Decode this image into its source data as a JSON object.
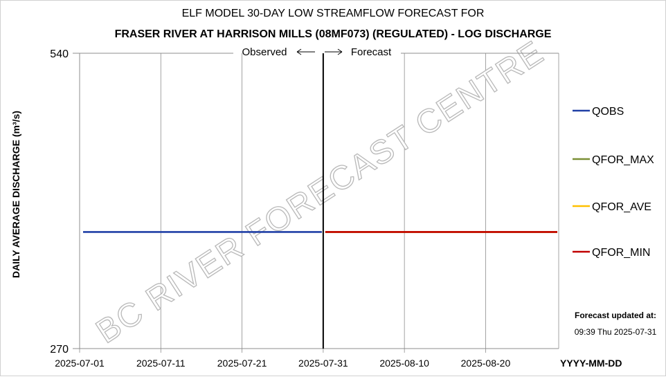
{
  "chart_data": {
    "type": "line",
    "title": "ELF MODEL 30-DAY LOW STREAMFLOW FORECAST FOR",
    "subtitle": "FRASER RIVER AT HARRISON MILLS (08MF073) (REGULATED) - LOG DISCHARGE",
    "ylabel": "DAILY AVERAGE DISCHARGE (m³/s)",
    "xlabel": "YYYY-MM-DD",
    "y_scale": "log",
    "ylim": [
      270,
      540
    ],
    "y_ticks": [
      "540",
      "270"
    ],
    "xlim": [
      "2025-07-01",
      "2025-08-29"
    ],
    "x_ticks": [
      "2025-07-01",
      "2025-07-11",
      "2025-07-21",
      "2025-07-31",
      "2025-08-10",
      "2025-08-20"
    ],
    "grid": "vertical",
    "legend_placement": "right",
    "divider": {
      "date": "2025-07-31",
      "left_label": "Observed",
      "right_label": "Forecast"
    },
    "series": [
      {
        "name": "QOBS",
        "color": "#1f3fa6",
        "x_start": "2025-07-01",
        "x_end": "2025-07-31",
        "value": 355
      },
      {
        "name": "QFOR_MAX",
        "color": "#7a8f35",
        "x_start": "2025-07-31",
        "x_end": "2025-08-29",
        "value": 355
      },
      {
        "name": "QFOR_AVE",
        "color": "#ffc000",
        "x_start": "2025-07-31",
        "x_end": "2025-08-29",
        "value": 355
      },
      {
        "name": "QFOR_MIN",
        "color": "#c00000",
        "x_start": "2025-07-31",
        "x_end": "2025-08-29",
        "value": 355
      }
    ]
  },
  "update_note": {
    "label": "Forecast updated at:",
    "timestamp": "09:39 Thu 2025-07-31"
  },
  "watermark": "BC RIVER FORECAST CENTRE"
}
